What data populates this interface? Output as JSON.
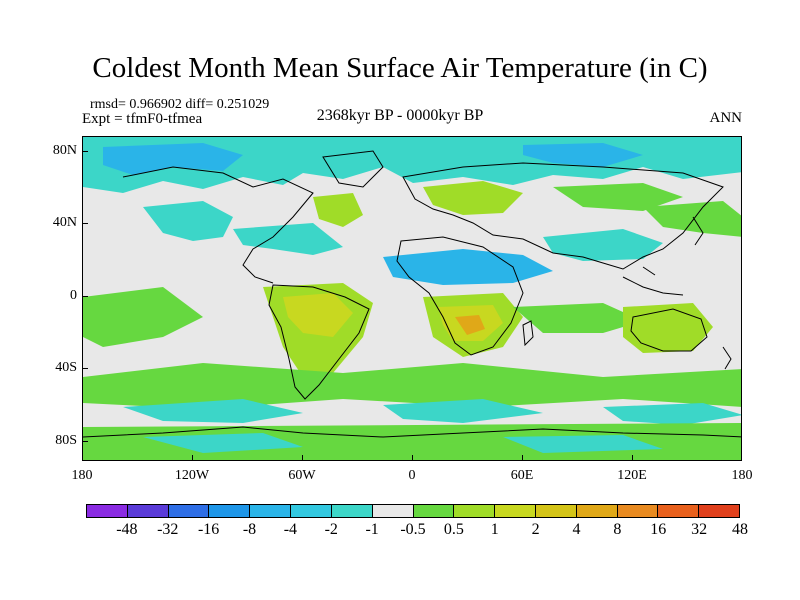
{
  "title": "Coldest Month Mean Surface Air Temperature (in C)",
  "stats": "rmsd= 0.966902 diff= 0.251029",
  "experiment": "Expt = tfmF0-tfmea",
  "period": "2368kyr BP - 0000kyr BP",
  "season": "ANN",
  "lat_ticks": [
    "80N",
    "40N",
    "0",
    "40S",
    "80S"
  ],
  "lon_ticks": [
    "180",
    "120W",
    "60W",
    "0",
    "60E",
    "120E",
    "180"
  ],
  "colorbar": {
    "colors": [
      "#8a2be2",
      "#5a3bd8",
      "#2e6ee6",
      "#1e96e8",
      "#2ab4e8",
      "#32c8e0",
      "#3cd6c8",
      "#e8e8e8",
      "#66d840",
      "#a0dc28",
      "#c8d820",
      "#d4c418",
      "#e0a818",
      "#e88a20",
      "#e8601c",
      "#e0401c"
    ],
    "labels": [
      "-48",
      "-32",
      "-16",
      "-8",
      "-4",
      "-2",
      "-1",
      "-0.5",
      "0.5",
      "1",
      "2",
      "4",
      "8",
      "16",
      "32",
      "48"
    ]
  }
}
